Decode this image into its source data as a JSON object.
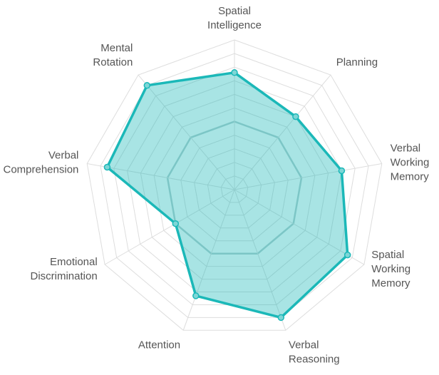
{
  "chart_data": {
    "type": "radar",
    "axes": [
      [
        "Spatial",
        "Intelligence"
      ],
      [
        "Planning"
      ],
      [
        "Verbal",
        "Working",
        "Memory"
      ],
      [
        "Spatial",
        "Working",
        "Memory"
      ],
      [
        "Verbal",
        "Reasoning"
      ],
      [
        "Attention"
      ],
      [
        "Emotional",
        "Discrimination"
      ],
      [
        "Verbal",
        "Comprehension"
      ],
      [
        "Mental",
        "Rotation"
      ]
    ],
    "series": [
      {
        "values": [
          86,
          70,
          80,
          96,
          100,
          83,
          50,
          95,
          100
        ],
        "color": "#1bb8b8",
        "fill": "#1bb8b8",
        "fill_opacity": 0.38
      }
    ],
    "rlim": [
      0,
      110
    ],
    "grid_rings": 11,
    "emphasized_ring": 50,
    "grid": true,
    "legend": "none"
  }
}
